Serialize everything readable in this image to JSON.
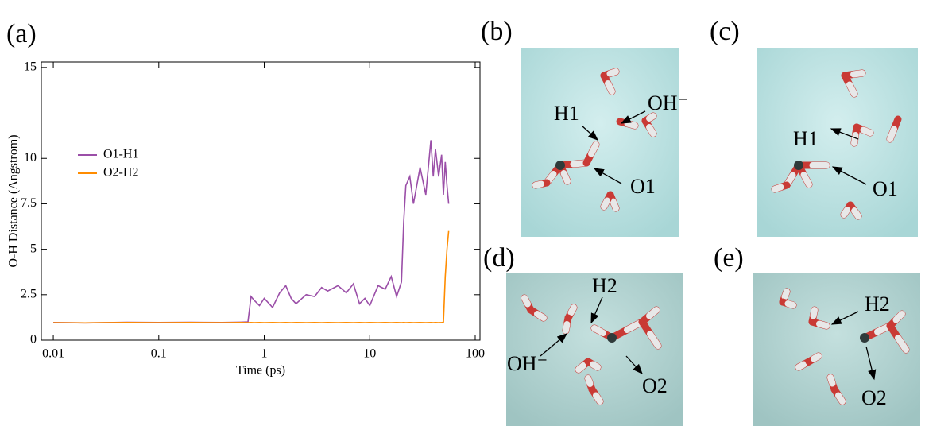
{
  "chart_data": {
    "type": "line",
    "panel_label": "(a)",
    "x_label": "Time (ps)",
    "y_label": "O-H Distance (Angstrom)",
    "x_scale": "log",
    "xlim": [
      0.0077,
      111
    ],
    "ylim": [
      0,
      15.3
    ],
    "xticks": [
      0.01,
      0.1,
      1,
      10,
      100
    ],
    "yticks": [
      0,
      2.5,
      5,
      7.5,
      10,
      15
    ],
    "legend": "left",
    "x": [
      0.01,
      0.02,
      0.05,
      0.1,
      0.2,
      0.4,
      0.6,
      0.7,
      0.75,
      0.8,
      0.9,
      1.0,
      1.2,
      1.4,
      1.6,
      1.8,
      2.0,
      2.5,
      3,
      3.5,
      4,
      5,
      6,
      7,
      8,
      9,
      10,
      12,
      14,
      16,
      18,
      20,
      21,
      22,
      24,
      26,
      30,
      34,
      38,
      40,
      42,
      45,
      48,
      50,
      52,
      54,
      56
    ],
    "series": [
      {
        "name": "O1-H1",
        "color": "#9b4fa8",
        "values": [
          0.97,
          0.95,
          0.98,
          0.97,
          0.98,
          0.97,
          0.99,
          1.0,
          2.4,
          2.2,
          1.9,
          2.3,
          1.8,
          2.6,
          3.0,
          2.3,
          2.0,
          2.5,
          2.4,
          2.9,
          2.7,
          3.0,
          2.6,
          3.1,
          2.0,
          2.3,
          1.9,
          3.0,
          2.8,
          3.5,
          2.4,
          3.2,
          6.5,
          8.5,
          9.0,
          7.5,
          9.5,
          8.0,
          11.0,
          9.0,
          10.5,
          9.0,
          10.2,
          8.0,
          9.8,
          8.5,
          7.5
        ]
      },
      {
        "name": "O2-H2",
        "color": "#ff8c00",
        "values": [
          0.96,
          0.95,
          0.97,
          0.96,
          0.97,
          0.96,
          0.97,
          0.96,
          0.97,
          0.96,
          0.97,
          0.96,
          0.97,
          0.96,
          0.97,
          0.96,
          0.97,
          0.96,
          0.97,
          0.96,
          0.97,
          0.96,
          0.97,
          0.96,
          0.97,
          0.96,
          0.97,
          0.96,
          0.97,
          0.96,
          0.97,
          0.96,
          0.97,
          0.96,
          0.97,
          0.96,
          0.97,
          0.96,
          0.97,
          0.96,
          0.97,
          0.96,
          0.97,
          0.98,
          3.5,
          5.0,
          6.0
        ]
      }
    ]
  },
  "panels": [
    {
      "label": "(b)",
      "annotations": [
        "OH⁻",
        "H1",
        "O1"
      ]
    },
    {
      "label": "(c)",
      "annotations": [
        "H1",
        "O1"
      ]
    },
    {
      "label": "(d)",
      "annotations": [
        "H2",
        "OH⁻",
        "O2"
      ]
    },
    {
      "label": "(e)",
      "annotations": [
        "H2",
        "O2"
      ]
    }
  ]
}
